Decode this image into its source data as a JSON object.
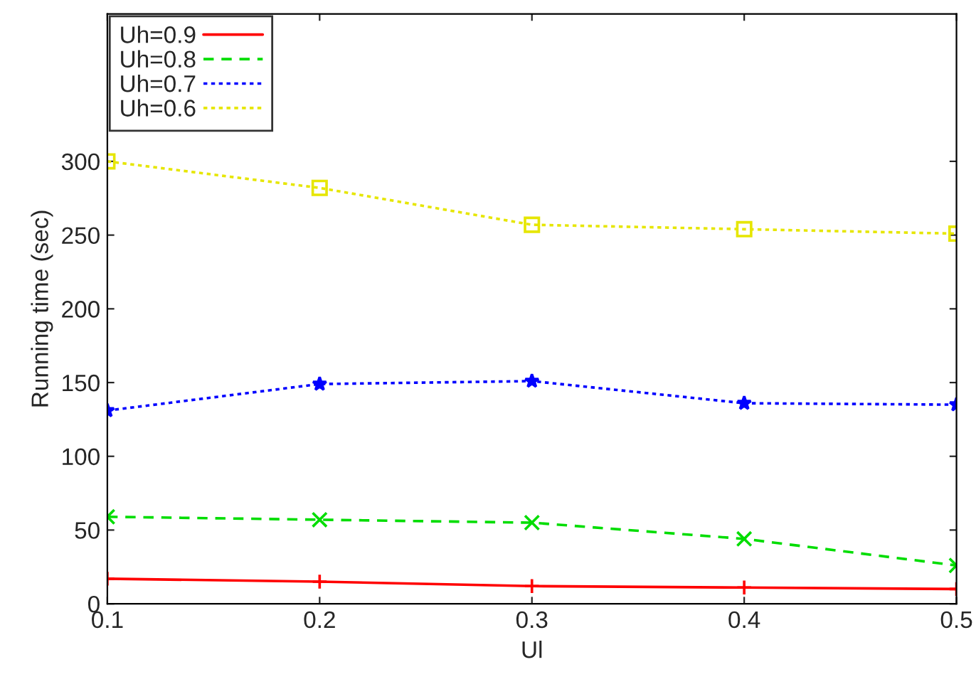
{
  "chart_data": {
    "type": "line",
    "xlabel": "Ul",
    "ylabel": "Running time (sec)",
    "x": [
      0.1,
      0.2,
      0.3,
      0.4,
      0.5
    ],
    "series": [
      {
        "name": "Uh=0.9",
        "color": "#ff0000",
        "marker": "plus",
        "line_style": "solid",
        "values": [
          17,
          15,
          12,
          11,
          10
        ]
      },
      {
        "name": "Uh=0.8",
        "color": "#00dd00",
        "marker": "cross",
        "line_style": "dashed",
        "values": [
          59,
          57,
          55,
          44,
          26
        ]
      },
      {
        "name": "Uh=0.7",
        "color": "#0000ff",
        "marker": "star",
        "line_style": "dotted",
        "values": [
          131,
          149,
          151,
          136,
          135
        ]
      },
      {
        "name": "Uh=0.6",
        "color": "#e6e600",
        "marker": "square",
        "line_style": "dotted",
        "values": [
          300,
          282,
          257,
          254,
          251
        ]
      }
    ],
    "xlim": [
      0.1,
      0.5
    ],
    "xticks": [
      0.1,
      0.2,
      0.3,
      0.4,
      0.5
    ],
    "ylim": [
      0,
      400
    ],
    "yticks": [
      0,
      50,
      100,
      150,
      200,
      250,
      300
    ],
    "grid": false,
    "legend": "top left"
  }
}
